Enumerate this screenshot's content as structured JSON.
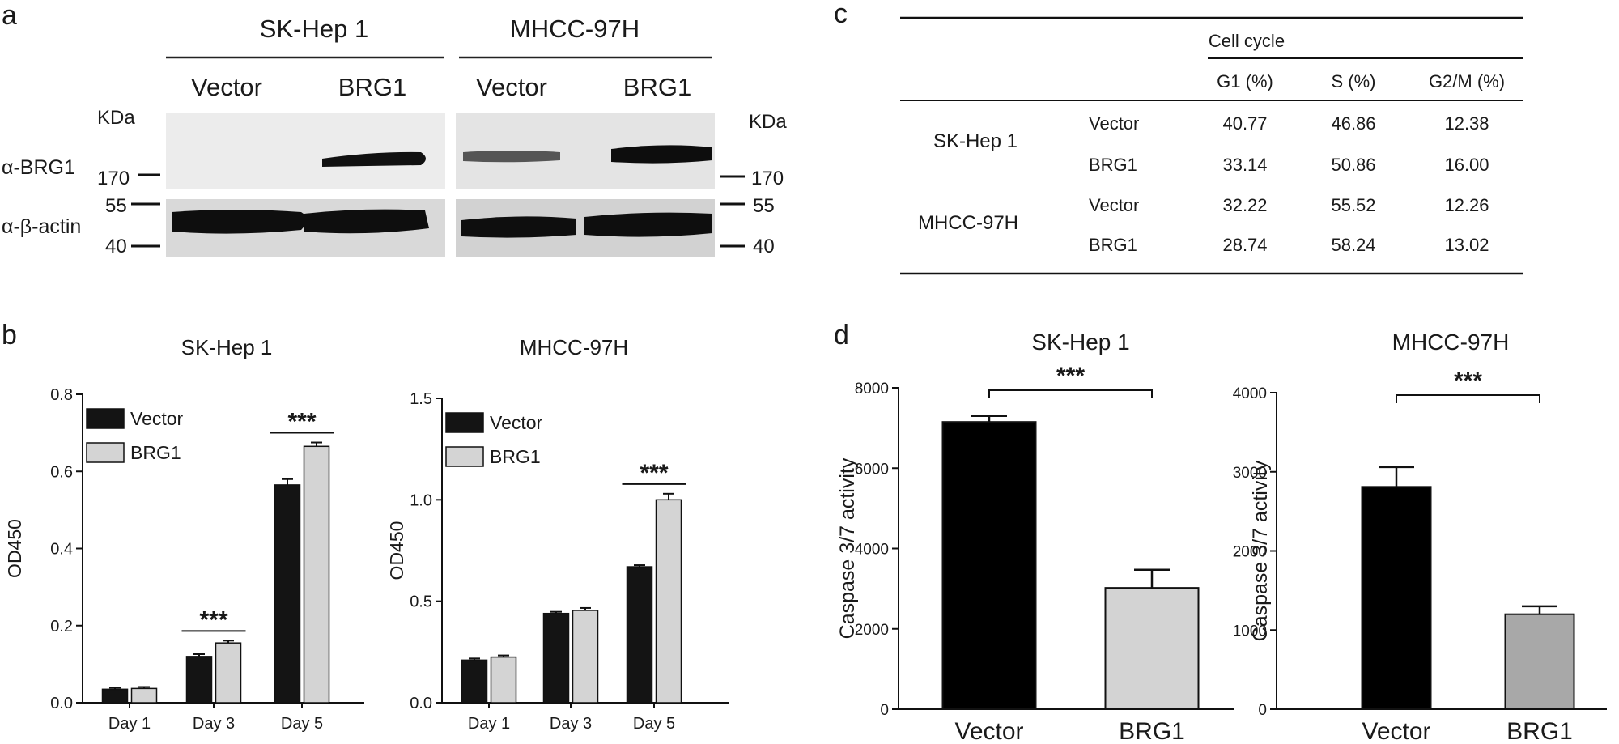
{
  "panels": {
    "a": {
      "letter": "a",
      "groups": [
        {
          "title": "SK-Hep 1",
          "lanes": [
            "Vector",
            "BRG1"
          ]
        },
        {
          "title": "MHCC-97H",
          "lanes": [
            "Vector",
            "BRG1"
          ]
        }
      ],
      "unit_label": "KDa",
      "row_labels": [
        "α-BRG1",
        "α-β-actin"
      ],
      "markers": [
        "170",
        "55",
        "40"
      ]
    },
    "b": {
      "letter": "b"
    },
    "c": {
      "letter": "c",
      "header_group": "Cell cycle",
      "columns": [
        "G1 (%)",
        "S (%)",
        "G2/M (%)"
      ],
      "rows": [
        {
          "line": "SK-Hep 1",
          "condition": "Vector",
          "values": [
            "40.77",
            "46.86",
            "12.38"
          ]
        },
        {
          "line": "",
          "condition": "BRG1",
          "values": [
            "33.14",
            "50.86",
            "16.00"
          ]
        },
        {
          "line": "MHCC-97H",
          "condition": "Vector",
          "values": [
            "32.22",
            "55.52",
            "12.26"
          ]
        },
        {
          "line": "",
          "condition": "BRG1",
          "values": [
            "28.74",
            "58.24",
            "13.02"
          ]
        }
      ]
    },
    "d": {
      "letter": "d"
    }
  },
  "chart_data": [
    {
      "id": "b1",
      "type": "bar",
      "title": "SK-Hep 1",
      "ylabel": "OD450",
      "categories": [
        "Day 1",
        "Day 3",
        "Day 5"
      ],
      "ylim": [
        0,
        0.8
      ],
      "yticks": [
        "0.0",
        "0.2",
        "0.4",
        "0.6",
        "0.8"
      ],
      "series": [
        {
          "name": "Vector",
          "color": "#141414",
          "values": [
            0.035,
            0.12,
            0.565
          ],
          "errors": [
            0.004,
            0.006,
            0.015
          ]
        },
        {
          "name": "BRG1",
          "color": "#d4d4d4",
          "values": [
            0.037,
            0.155,
            0.665
          ],
          "errors": [
            0.004,
            0.006,
            0.01
          ]
        }
      ],
      "significance": [
        {
          "category": 1,
          "label": "***"
        },
        {
          "category": 2,
          "label": "***"
        }
      ],
      "legend": "top-left"
    },
    {
      "id": "b2",
      "type": "bar",
      "title": "MHCC-97H",
      "ylabel": "OD450",
      "categories": [
        "Day 1",
        "Day 3",
        "Day 5"
      ],
      "ylim": [
        0,
        1.5
      ],
      "yticks": [
        "0.0",
        "0.5",
        "1.0",
        "1.5"
      ],
      "series": [
        {
          "name": "Vector",
          "color": "#141414",
          "values": [
            0.21,
            0.44,
            0.67
          ],
          "errors": [
            0.008,
            0.008,
            0.008
          ]
        },
        {
          "name": "BRG1",
          "color": "#d4d4d4",
          "values": [
            0.225,
            0.455,
            1.0
          ],
          "errors": [
            0.008,
            0.012,
            0.03
          ]
        }
      ],
      "significance": [
        {
          "category": 2,
          "label": "***"
        }
      ],
      "legend": "top-left"
    },
    {
      "id": "d1",
      "type": "bar",
      "title": "SK-Hep 1",
      "ylabel": "Caspase 3/7 activity",
      "categories": [
        "Vector",
        "BRG1"
      ],
      "ylim": [
        0,
        8000
      ],
      "yticks": [
        "0",
        "2000",
        "4000",
        "6000",
        "8000"
      ],
      "values": [
        7150,
        3020
      ],
      "errors": [
        150,
        450
      ],
      "colors": [
        "#000000",
        "#d3d3d3"
      ],
      "significance": [
        {
          "between": [
            0,
            1
          ],
          "label": "***"
        }
      ]
    },
    {
      "id": "d2",
      "type": "bar",
      "title": "MHCC-97H",
      "ylabel": "Caspase 3/7 activity",
      "categories": [
        "Vector",
        "BRG1"
      ],
      "ylim": [
        0,
        4000
      ],
      "yticks": [
        "0",
        "1000",
        "2000",
        "3000",
        "4000"
      ],
      "values": [
        2810,
        1200
      ],
      "errors": [
        250,
        100
      ],
      "colors": [
        "#000000",
        "#a8a8a8"
      ],
      "significance": [
        {
          "between": [
            0,
            1
          ],
          "label": "***"
        }
      ]
    }
  ]
}
